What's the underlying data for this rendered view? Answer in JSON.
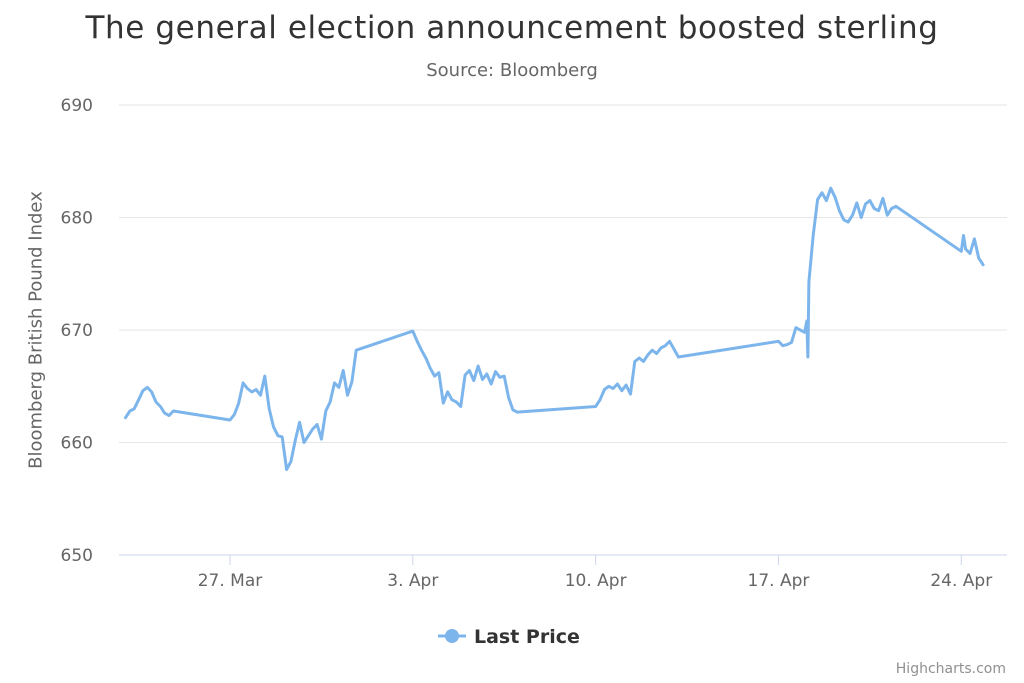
{
  "chart_data": {
    "type": "line",
    "title": "The general election announcement boosted sterling",
    "subtitle": "Source: Bloomberg",
    "ylabel": "Bloomberg British Pound Index",
    "xlabel": "",
    "ylim": [
      650,
      690
    ],
    "y_ticks": [
      650,
      660,
      670,
      680,
      690
    ],
    "x_ticks": [
      {
        "date": "2017-03-27",
        "label": "27. Mar"
      },
      {
        "date": "2017-04-03",
        "label": "3. Apr"
      },
      {
        "date": "2017-04-10",
        "label": "10. Apr"
      },
      {
        "date": "2017-04-17",
        "label": "17. Apr"
      },
      {
        "date": "2017-04-24",
        "label": "24. Apr"
      }
    ],
    "xlim": [
      "2017-03-22 18:00",
      "2017-04-25 18:00"
    ],
    "grid": "horizontal",
    "legend_position": "bottom-center",
    "credits": "Highcharts.com",
    "colors": {
      "series": "#7cb5ec",
      "grid": "#e6e6e6",
      "axis_line": "#ccd6eb",
      "text": "#666666"
    },
    "series": [
      {
        "name": "Last Price",
        "points": [
          [
            "2017-03-23 00:00",
            662.2
          ],
          [
            "2017-03-23 04:00",
            662.8
          ],
          [
            "2017-03-23 08:00",
            663.0
          ],
          [
            "2017-03-23 12:00",
            663.8
          ],
          [
            "2017-03-23 16:00",
            664.6
          ],
          [
            "2017-03-23 20:00",
            664.9
          ],
          [
            "2017-03-24 00:00",
            664.5
          ],
          [
            "2017-03-24 04:00",
            663.6
          ],
          [
            "2017-03-24 08:00",
            663.2
          ],
          [
            "2017-03-24 12:00",
            662.6
          ],
          [
            "2017-03-24 16:00",
            662.4
          ],
          [
            "2017-03-24 20:00",
            662.8
          ],
          [
            "2017-03-27 00:00",
            662.0
          ],
          [
            "2017-03-27 04:00",
            662.5
          ],
          [
            "2017-03-27 08:00",
            663.5
          ],
          [
            "2017-03-27 12:00",
            665.3
          ],
          [
            "2017-03-27 16:00",
            664.8
          ],
          [
            "2017-03-27 20:00",
            664.5
          ],
          [
            "2017-03-28 00:00",
            664.7
          ],
          [
            "2017-03-28 04:00",
            664.2
          ],
          [
            "2017-03-28 08:00",
            665.9
          ],
          [
            "2017-03-28 12:00",
            663.0
          ],
          [
            "2017-03-28 16:00",
            661.4
          ],
          [
            "2017-03-28 20:00",
            660.6
          ],
          [
            "2017-03-29 00:00",
            660.5
          ],
          [
            "2017-03-29 04:00",
            657.6
          ],
          [
            "2017-03-29 08:00",
            658.3
          ],
          [
            "2017-03-29 12:00",
            660.2
          ],
          [
            "2017-03-29 16:00",
            661.8
          ],
          [
            "2017-03-29 20:00",
            660.0
          ],
          [
            "2017-03-30 00:00",
            660.6
          ],
          [
            "2017-03-30 04:00",
            661.2
          ],
          [
            "2017-03-30 08:00",
            661.6
          ],
          [
            "2017-03-30 12:00",
            660.3
          ],
          [
            "2017-03-30 16:00",
            662.8
          ],
          [
            "2017-03-30 20:00",
            663.6
          ],
          [
            "2017-03-31 00:00",
            665.3
          ],
          [
            "2017-03-31 04:00",
            664.9
          ],
          [
            "2017-03-31 08:00",
            666.4
          ],
          [
            "2017-03-31 12:00",
            664.2
          ],
          [
            "2017-03-31 16:00",
            665.4
          ],
          [
            "2017-03-31 20:00",
            668.2
          ],
          [
            "2017-04-03 00:00",
            669.9
          ],
          [
            "2017-04-03 04:00",
            669.0
          ],
          [
            "2017-04-03 08:00",
            668.2
          ],
          [
            "2017-04-03 12:00",
            667.5
          ],
          [
            "2017-04-03 16:00",
            666.6
          ],
          [
            "2017-04-03 20:00",
            665.9
          ],
          [
            "2017-04-04 00:00",
            666.2
          ],
          [
            "2017-04-04 04:00",
            663.5
          ],
          [
            "2017-04-04 08:00",
            664.5
          ],
          [
            "2017-04-04 12:00",
            663.8
          ],
          [
            "2017-04-04 16:00",
            663.6
          ],
          [
            "2017-04-04 20:00",
            663.2
          ],
          [
            "2017-04-05 00:00",
            666.0
          ],
          [
            "2017-04-05 04:00",
            666.4
          ],
          [
            "2017-04-05 08:00",
            665.5
          ],
          [
            "2017-04-05 12:00",
            666.8
          ],
          [
            "2017-04-05 16:00",
            665.6
          ],
          [
            "2017-04-05 20:00",
            666.1
          ],
          [
            "2017-04-06 00:00",
            665.2
          ],
          [
            "2017-04-06 04:00",
            666.3
          ],
          [
            "2017-04-06 08:00",
            665.8
          ],
          [
            "2017-04-06 12:00",
            665.9
          ],
          [
            "2017-04-06 16:00",
            664.0
          ],
          [
            "2017-04-06 20:00",
            662.9
          ],
          [
            "2017-04-07 00:00",
            662.7
          ],
          [
            "2017-04-10 00:00",
            663.2
          ],
          [
            "2017-04-10 04:00",
            663.8
          ],
          [
            "2017-04-10 08:00",
            664.7
          ],
          [
            "2017-04-10 12:00",
            665.0
          ],
          [
            "2017-04-10 16:00",
            664.8
          ],
          [
            "2017-04-10 20:00",
            665.2
          ],
          [
            "2017-04-11 00:00",
            664.6
          ],
          [
            "2017-04-11 04:00",
            665.1
          ],
          [
            "2017-04-11 08:00",
            664.3
          ],
          [
            "2017-04-11 12:00",
            667.2
          ],
          [
            "2017-04-11 16:00",
            667.5
          ],
          [
            "2017-04-11 20:00",
            667.2
          ],
          [
            "2017-04-12 00:00",
            667.8
          ],
          [
            "2017-04-12 04:00",
            668.2
          ],
          [
            "2017-04-12 08:00",
            667.9
          ],
          [
            "2017-04-12 12:00",
            668.4
          ],
          [
            "2017-04-12 16:00",
            668.6
          ],
          [
            "2017-04-12 20:00",
            669.0
          ],
          [
            "2017-04-13 00:00",
            668.3
          ],
          [
            "2017-04-13 04:00",
            667.6
          ],
          [
            "2017-04-17 00:00",
            669.0
          ],
          [
            "2017-04-17 04:00",
            668.6
          ],
          [
            "2017-04-17 08:00",
            668.7
          ],
          [
            "2017-04-17 12:00",
            668.9
          ],
          [
            "2017-04-17 16:00",
            670.2
          ],
          [
            "2017-04-17 20:00",
            670.0
          ],
          [
            "2017-04-18 00:00",
            669.8
          ],
          [
            "2017-04-18 02:00",
            670.8
          ],
          [
            "2017-04-18 03:00",
            667.6
          ],
          [
            "2017-04-18 04:00",
            674.3
          ],
          [
            "2017-04-18 08:00",
            678.5
          ],
          [
            "2017-04-18 12:00",
            681.6
          ],
          [
            "2017-04-18 16:00",
            682.2
          ],
          [
            "2017-04-18 20:00",
            681.5
          ],
          [
            "2017-04-19 00:00",
            682.6
          ],
          [
            "2017-04-19 04:00",
            681.8
          ],
          [
            "2017-04-19 08:00",
            680.6
          ],
          [
            "2017-04-19 12:00",
            679.8
          ],
          [
            "2017-04-19 16:00",
            679.6
          ],
          [
            "2017-04-19 20:00",
            680.2
          ],
          [
            "2017-04-20 00:00",
            681.3
          ],
          [
            "2017-04-20 04:00",
            680.0
          ],
          [
            "2017-04-20 08:00",
            681.2
          ],
          [
            "2017-04-20 12:00",
            681.5
          ],
          [
            "2017-04-20 16:00",
            680.8
          ],
          [
            "2017-04-20 20:00",
            680.6
          ],
          [
            "2017-04-21 00:00",
            681.7
          ],
          [
            "2017-04-21 04:00",
            680.2
          ],
          [
            "2017-04-21 08:00",
            680.8
          ],
          [
            "2017-04-21 12:00",
            681.0
          ],
          [
            "2017-04-24 00:00",
            677.0
          ],
          [
            "2017-04-24 02:00",
            678.4
          ],
          [
            "2017-04-24 04:00",
            677.2
          ],
          [
            "2017-04-24 08:00",
            676.8
          ],
          [
            "2017-04-24 12:00",
            678.1
          ],
          [
            "2017-04-24 16:00",
            676.4
          ],
          [
            "2017-04-24 20:00",
            675.8
          ]
        ]
      }
    ]
  }
}
